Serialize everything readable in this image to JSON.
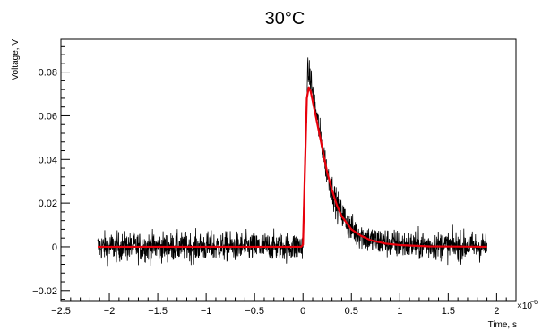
{
  "chart_data": {
    "type": "line",
    "title": "30°C",
    "xlabel": "Time, s",
    "ylabel": "Voltage, V",
    "x_multiplier_base": "×10",
    "x_multiplier_exponent": "−6",
    "xlim": [
      -2.5,
      2.2
    ],
    "ylim": [
      -0.025,
      0.095
    ],
    "x_ticks": [
      {
        "value": -2.5,
        "label": "−2.5"
      },
      {
        "value": -2.0,
        "label": "−2"
      },
      {
        "value": -1.5,
        "label": "−1.5"
      },
      {
        "value": -1.0,
        "label": "−1"
      },
      {
        "value": -0.5,
        "label": "−0.5"
      },
      {
        "value": 0.0,
        "label": "0"
      },
      {
        "value": 0.5,
        "label": "0.5"
      },
      {
        "value": 1.0,
        "label": "1"
      },
      {
        "value": 1.5,
        "label": "1.5"
      },
      {
        "value": 2.0,
        "label": "2"
      }
    ],
    "y_ticks": [
      {
        "value": -0.02,
        "label": "−0.02"
      },
      {
        "value": 0.0,
        "label": "0"
      },
      {
        "value": 0.02,
        "label": "0.02"
      },
      {
        "value": 0.04,
        "label": "0.04"
      },
      {
        "value": 0.06,
        "label": "0.06"
      },
      {
        "value": 0.08,
        "label": "0.08"
      }
    ],
    "grid": false,
    "legend": "none",
    "series": [
      {
        "kind": "noisy-data",
        "color": "#000000",
        "x_range": [
          -2.12,
          1.9
        ],
        "baseline": 0.0,
        "noise_amplitude": 0.006,
        "points": [
          {
            "x": -2.12,
            "y": 0.0
          },
          {
            "x": -0.02,
            "y": 0.0
          },
          {
            "x": 0.0,
            "y": 0.002
          },
          {
            "x": 0.02,
            "y": 0.04
          },
          {
            "x": 0.05,
            "y": 0.08
          },
          {
            "x": 0.08,
            "y": 0.076
          },
          {
            "x": 0.15,
            "y": 0.058
          },
          {
            "x": 0.25,
            "y": 0.034
          },
          {
            "x": 0.35,
            "y": 0.019
          },
          {
            "x": 0.5,
            "y": 0.008
          },
          {
            "x": 0.7,
            "y": 0.003
          },
          {
            "x": 1.0,
            "y": 0.001
          },
          {
            "x": 1.9,
            "y": 0.0
          }
        ]
      },
      {
        "kind": "fit",
        "color": "#e8000b",
        "points": [
          {
            "x": -2.12,
            "y": 0.0
          },
          {
            "x": -0.02,
            "y": 0.0
          },
          {
            "x": 0.0,
            "y": 0.001
          },
          {
            "x": 0.02,
            "y": 0.035
          },
          {
            "x": 0.04,
            "y": 0.068
          },
          {
            "x": 0.06,
            "y": 0.073
          },
          {
            "x": 0.08,
            "y": 0.071
          },
          {
            "x": 0.15,
            "y": 0.056
          },
          {
            "x": 0.2,
            "y": 0.045
          },
          {
            "x": 0.25,
            "y": 0.034
          },
          {
            "x": 0.3,
            "y": 0.026
          },
          {
            "x": 0.35,
            "y": 0.019
          },
          {
            "x": 0.4,
            "y": 0.014
          },
          {
            "x": 0.5,
            "y": 0.008
          },
          {
            "x": 0.6,
            "y": 0.005
          },
          {
            "x": 0.7,
            "y": 0.003
          },
          {
            "x": 0.85,
            "y": 0.0015
          },
          {
            "x": 1.0,
            "y": 0.0008
          },
          {
            "x": 1.3,
            "y": 0.0002
          },
          {
            "x": 1.9,
            "y": 0.0
          }
        ]
      }
    ]
  }
}
